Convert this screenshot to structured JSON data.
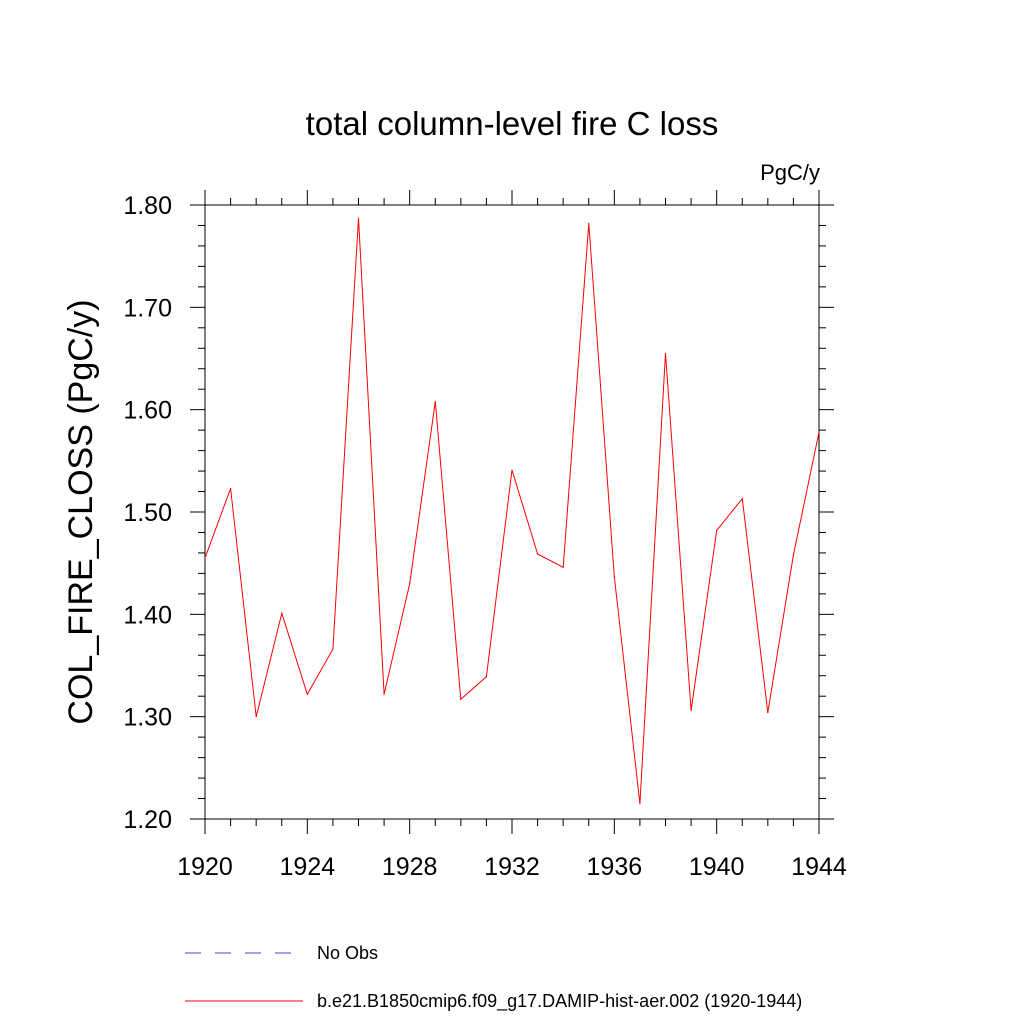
{
  "chart_data": {
    "type": "line",
    "title": "total column-level fire C loss",
    "units": "PgC/y",
    "xlabel": "",
    "ylabel": "COL_FIRE_CLOSS  (PgC/y)",
    "xlim": [
      1920,
      1944
    ],
    "ylim": [
      1.2,
      1.8
    ],
    "x_ticks": [
      1920,
      1924,
      1928,
      1932,
      1936,
      1940,
      1944
    ],
    "y_ticks": [
      "1.20",
      "1.30",
      "1.40",
      "1.50",
      "1.60",
      "1.70",
      "1.80"
    ],
    "grid": false,
    "legend_position": "bottom",
    "series": [
      {
        "name": "b.e21.B1850cmip6.f09_g17.DAMIP-hist-aer.002 (1920-1944)",
        "color": "#ff0000",
        "style": "solid",
        "x": [
          1920,
          1921,
          1922,
          1923,
          1924,
          1925,
          1926,
          1927,
          1928,
          1929,
          1930,
          1931,
          1932,
          1933,
          1934,
          1935,
          1936,
          1937,
          1938,
          1939,
          1940,
          1941,
          1942,
          1943,
          1944
        ],
        "y": [
          1.455,
          1.523,
          1.3,
          1.401,
          1.322,
          1.366,
          1.787,
          1.322,
          1.43,
          1.608,
          1.317,
          1.339,
          1.541,
          1.459,
          1.446,
          1.782,
          1.437,
          1.215,
          1.655,
          1.306,
          1.482,
          1.513,
          1.304,
          1.458,
          1.578
        ]
      }
    ],
    "legend": [
      {
        "label": "No Obs",
        "color": "#4444cc",
        "style": "dashed"
      },
      {
        "label": "b.e21.B1850cmip6.f09_g17.DAMIP-hist-aer.002 (1920-1944)",
        "color": "#ff0000",
        "style": "solid"
      }
    ]
  }
}
